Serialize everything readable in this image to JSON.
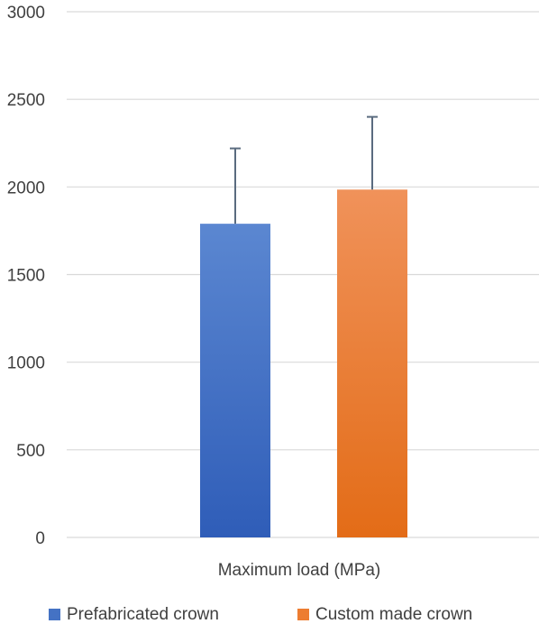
{
  "chart_data": {
    "type": "bar",
    "categories": [
      "Maximum load (MPa)"
    ],
    "series": [
      {
        "name": "Prefabricated crown",
        "values": [
          1790
        ],
        "error_plus": [
          430
        ],
        "color": "#4472C4",
        "color_light": "#5B87D1",
        "color_dark": "#2F5DB8"
      },
      {
        "name": "Custom made crown",
        "values": [
          1985
        ],
        "error_plus": [
          415
        ],
        "color": "#ED7D31",
        "color_light": "#F0925A",
        "color_dark": "#E36C17"
      }
    ],
    "yticks": [
      0,
      500,
      1000,
      1500,
      2000,
      2500,
      3000
    ],
    "ylim": [
      0,
      3000
    ],
    "grid": true,
    "legend_position": "bottom",
    "error_bar_color": "#5A6B7F",
    "grid_color": "#D9D9D9",
    "text_color": "#404040"
  }
}
